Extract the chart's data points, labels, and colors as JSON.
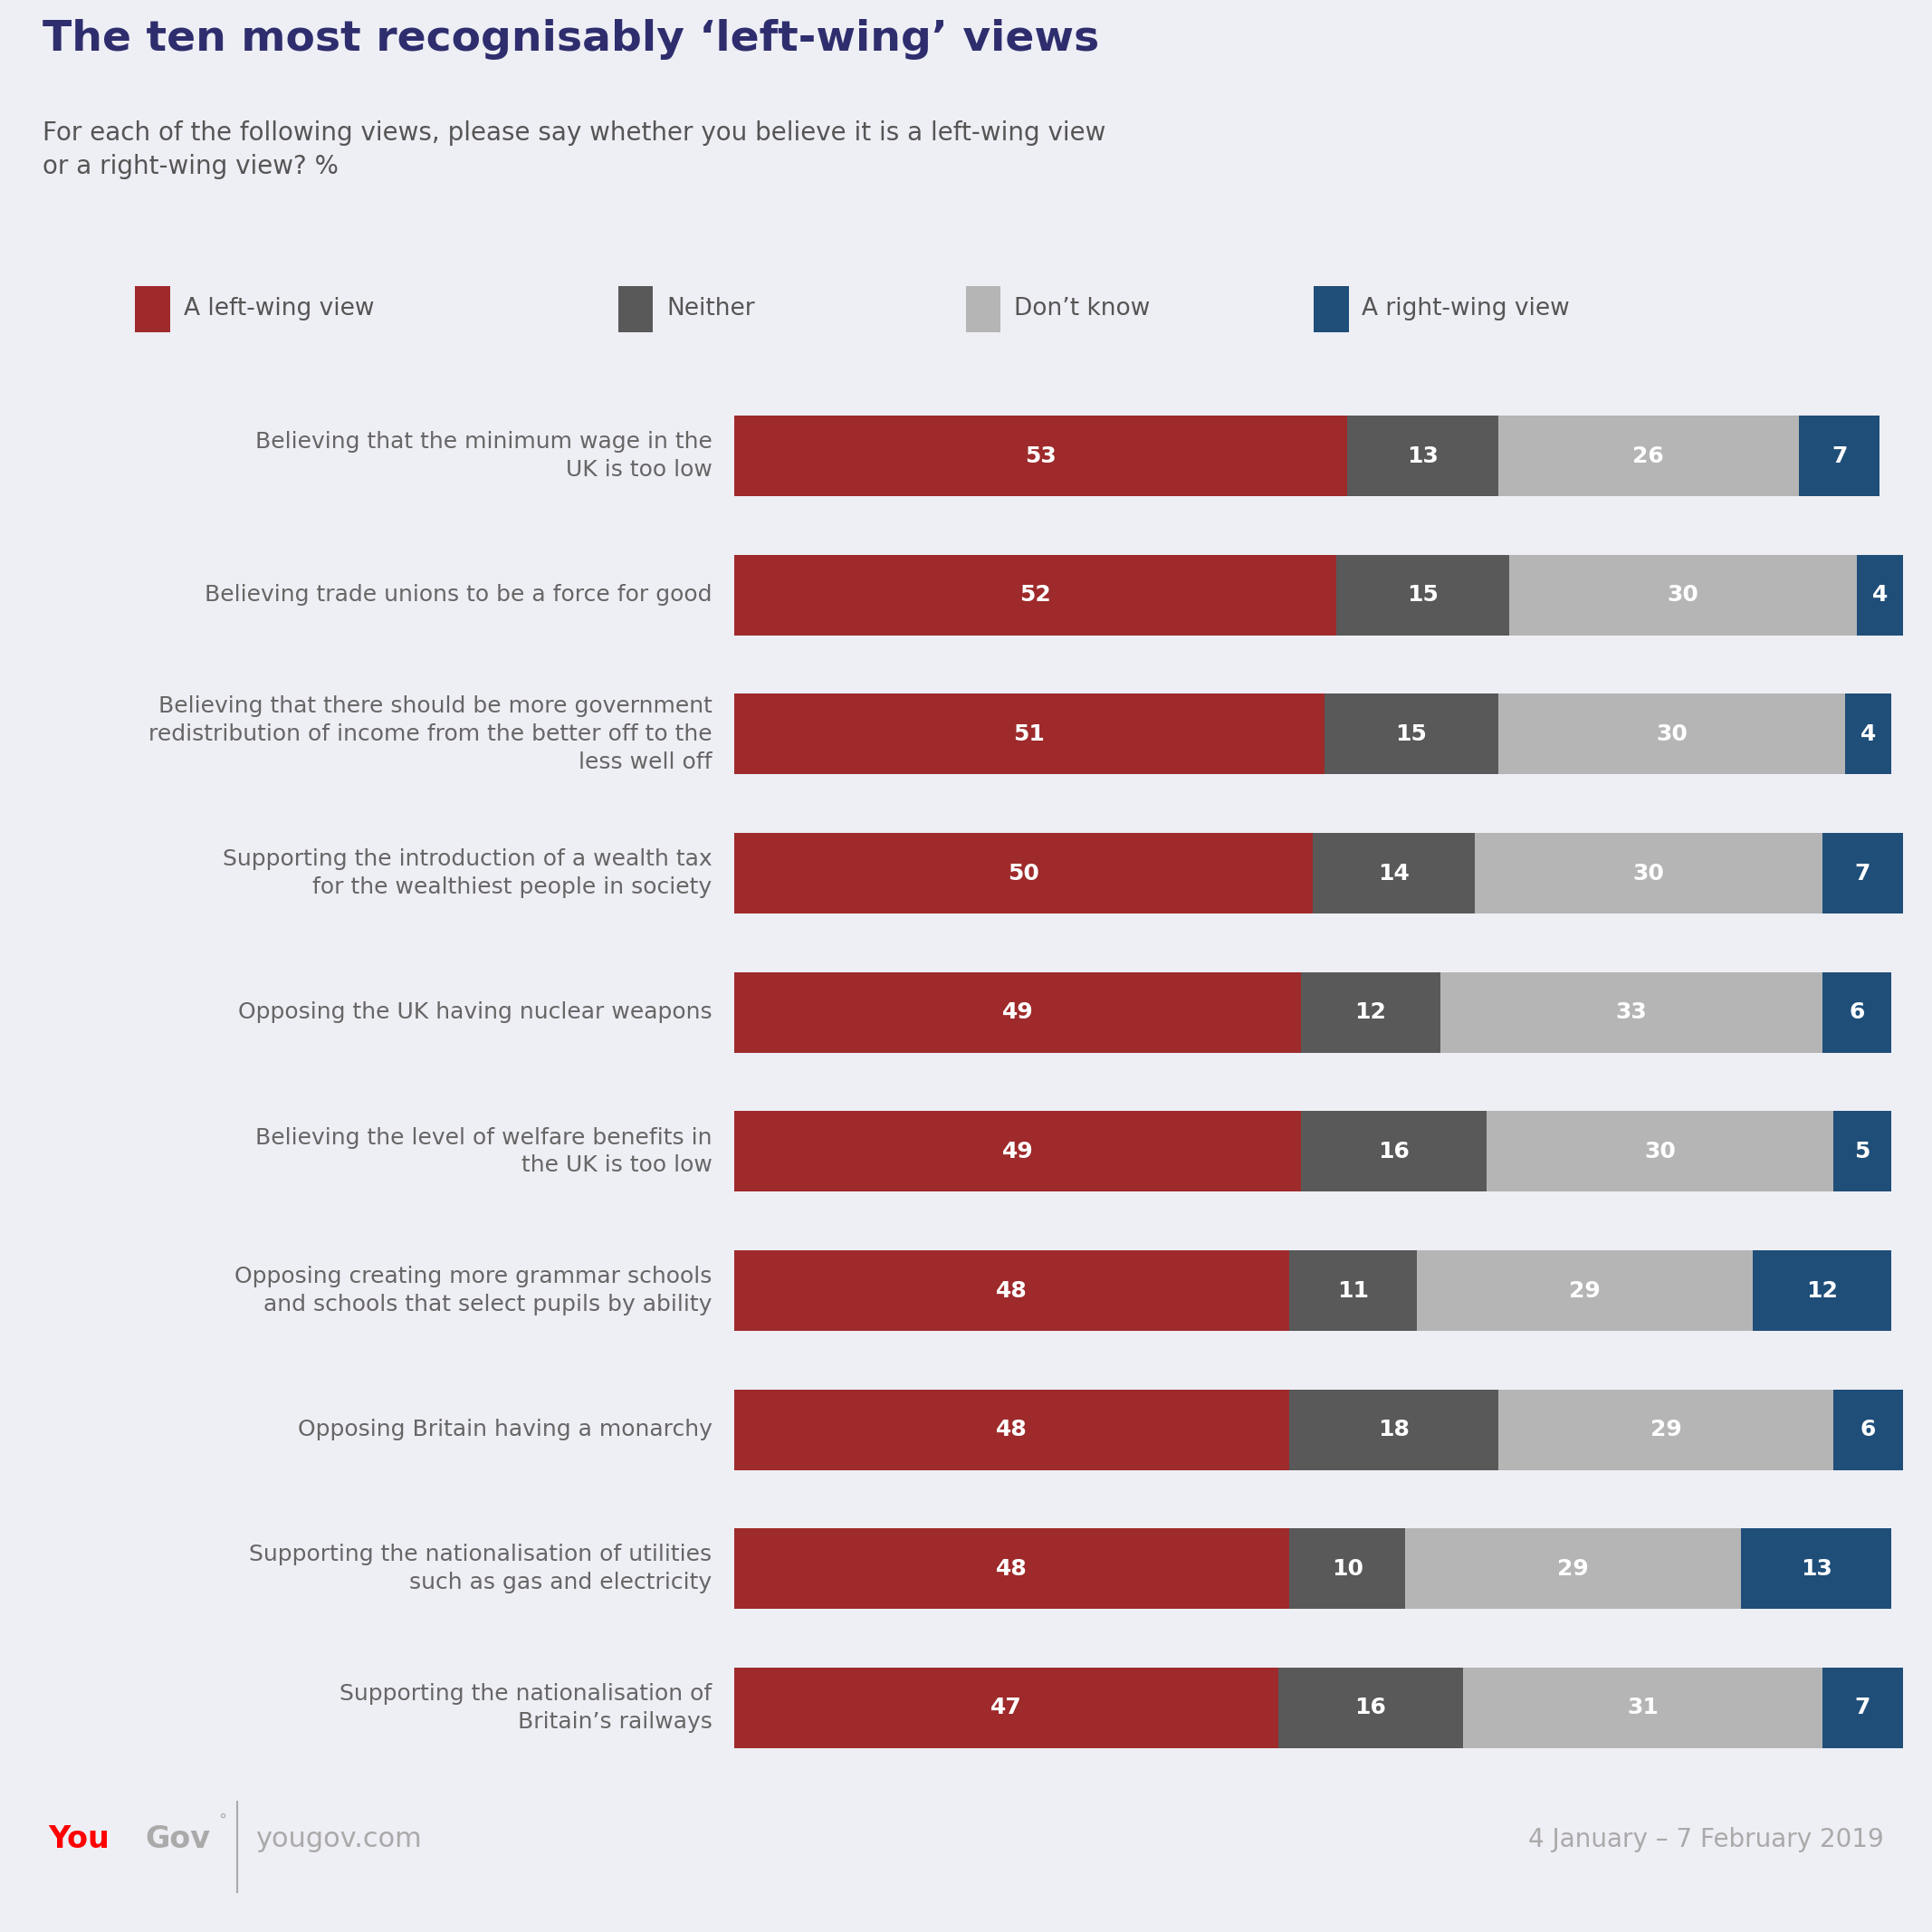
{
  "title": "The ten most recognisably ‘left-wing’ views",
  "subtitle": "For each of the following views, please say whether you believe it is a left-wing view\nor a right-wing view? %",
  "background_color": "#eeeef5",
  "chart_bg_color": "#ffffff",
  "categories": [
    "Believing that the minimum wage in the\nUK is too low",
    "Believing trade unions to be a force for good",
    "Believing that there should be more government\nredistribution of income from the better off to the\nless well off",
    "Supporting the introduction of a wealth tax\nfor the wealthiest people in society",
    "Opposing the UK having nuclear weapons",
    "Believing the level of welfare benefits in\nthe UK is too low",
    "Opposing creating more grammar schools\nand schools that select pupils by ability",
    "Opposing Britain having a monarchy",
    "Supporting the nationalisation of utilities\nsuch as gas and electricity",
    "Supporting the nationalisation of\nBritain’s railways"
  ],
  "left_wing": [
    53,
    52,
    51,
    50,
    49,
    49,
    48,
    48,
    48,
    47
  ],
  "neither": [
    13,
    15,
    15,
    14,
    12,
    16,
    11,
    18,
    10,
    16
  ],
  "dont_know": [
    26,
    30,
    30,
    30,
    33,
    30,
    29,
    29,
    29,
    31
  ],
  "right_wing": [
    7,
    4,
    4,
    7,
    6,
    5,
    12,
    6,
    13,
    7
  ],
  "colors": {
    "left_wing": "#9e2a2b",
    "neither": "#595959",
    "dont_know": "#b5b5b5",
    "right_wing": "#1f4e79"
  },
  "legend_labels": [
    "A left-wing view",
    "Neither",
    "Don’t know",
    "A right-wing view"
  ],
  "date_text": "4 January – 7 February 2019",
  "title_fontsize": 34,
  "subtitle_fontsize": 20,
  "legend_fontsize": 19,
  "label_fontsize": 18,
  "bar_value_fontsize": 18
}
